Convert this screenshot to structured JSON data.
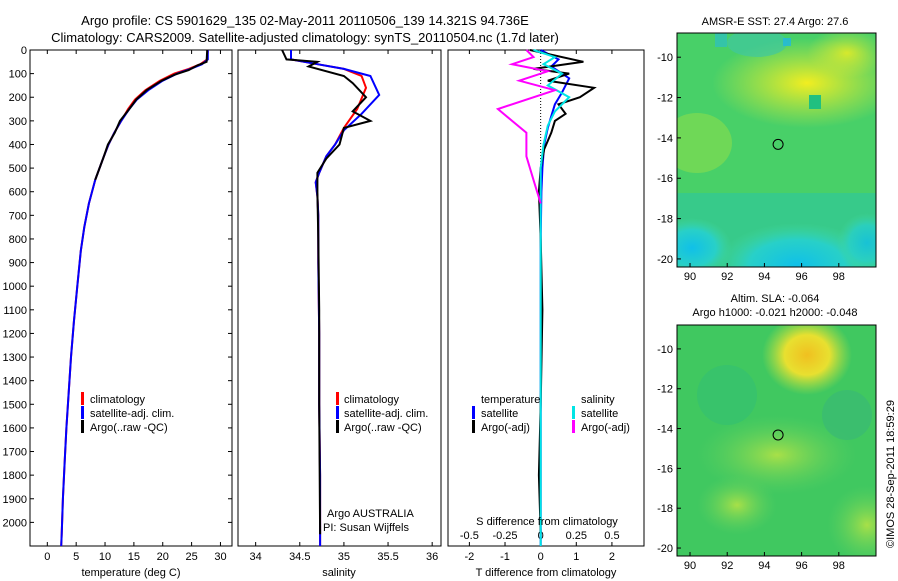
{
  "title": {
    "line1": "Argo profile: CS 5901629_135 02-May-2011 20110506_139 14.321S 94.736E",
    "line2": "Climatology: CARS2009. Satellite-adjusted climatology: synTS_20110504.nc (1.7d later)"
  },
  "map_titles": {
    "sst": "AMSR-E SST: 27.4 Argo: 27.6",
    "sla_line1": "Altim. SLA: -0.064",
    "sla_line2": "Argo h1000: -0.021 h2000: -0.048"
  },
  "footer": "©IMOS 28-Sep-2011 18:59:29",
  "float_info": {
    "line1": "Argo AUSTRALIA",
    "line2": "PI: Susan Wijffels"
  },
  "colors": {
    "climatology": "#ff0000",
    "satellite": "#0000ff",
    "argo": "#000000",
    "salinity_satellite": "#00e5e5",
    "salinity_argo": "#ff00ff"
  },
  "chart_data": [
    {
      "type": "line",
      "id": "temperature",
      "xlabel": "temperature (deg C)",
      "ylabel": "",
      "xlim": [
        -3,
        32
      ],
      "ylim": [
        0,
        2100
      ],
      "xticks": [
        0,
        5,
        10,
        15,
        20,
        25,
        30
      ],
      "yticks": [
        0,
        100,
        200,
        300,
        400,
        500,
        600,
        700,
        800,
        900,
        1000,
        1100,
        1200,
        1300,
        1400,
        1500,
        1600,
        1700,
        1800,
        1900,
        2000
      ],
      "legend": [
        "climatology",
        "satellite-adj. clim.",
        "Argo(..raw -QC)"
      ],
      "series": [
        {
          "name": "climatology",
          "color": "#ff0000",
          "x": [
            27.8,
            27.7,
            26.5,
            24.5,
            22,
            19.5,
            17,
            15.2,
            14,
            12.8,
            11.6,
            10.6,
            9.8,
            8.3,
            7.2,
            6.4,
            5.8,
            5.2,
            4.6,
            4.1,
            3.7,
            3.3,
            3.0,
            2.7,
            2.5,
            2.4
          ],
          "y": [
            0,
            40,
            60,
            80,
            100,
            130,
            170,
            210,
            250,
            300,
            350,
            400,
            450,
            550,
            650,
            750,
            850,
            1000,
            1150,
            1300,
            1450,
            1600,
            1750,
            1900,
            2050,
            2100
          ]
        },
        {
          "name": "satellite-adj. clim.",
          "color": "#0000ff",
          "x": [
            27.8,
            27.8,
            26.8,
            24.8,
            22.5,
            20,
            17.5,
            15.5,
            14.2,
            12.8,
            11.6,
            10.6,
            9.8,
            8.3,
            7.2,
            6.4,
            5.8,
            5.2,
            4.6,
            4.1,
            3.7,
            3.3,
            3.0,
            2.7,
            2.5,
            2.4
          ],
          "y": [
            0,
            40,
            60,
            80,
            100,
            130,
            170,
            210,
            250,
            300,
            350,
            400,
            450,
            550,
            650,
            750,
            850,
            1000,
            1150,
            1300,
            1450,
            1600,
            1750,
            1900,
            2050,
            2100
          ]
        },
        {
          "name": "Argo(..raw -QC)",
          "color": "#000000",
          "x": [
            27.7,
            27.6,
            26,
            24.5,
            22,
            19.8,
            17.2,
            15.4,
            14.2,
            12.6,
            11.7,
            10.5,
            9.8,
            8.3
          ],
          "y": [
            0,
            50,
            65,
            85,
            105,
            130,
            170,
            210,
            250,
            300,
            350,
            400,
            450,
            550
          ]
        }
      ]
    },
    {
      "type": "line",
      "id": "salinity",
      "xlabel": "salinity",
      "ylabel": "",
      "xlim": [
        33.8,
        36.1
      ],
      "ylim": [
        0,
        2100
      ],
      "xticks": [
        34,
        34.5,
        35,
        35.5,
        36
      ],
      "xtick_labels": [
        "34",
        "34.5",
        "35",
        "35.5",
        "36"
      ],
      "legend": [
        "climatology",
        "satellite-adj. clim.",
        "Argo(..raw -QC)"
      ],
      "series": [
        {
          "name": "climatology",
          "color": "#ff0000",
          "x": [
            34.4,
            34.4,
            34.7,
            35.0,
            35.2,
            35.25,
            35.15,
            35.0,
            34.9,
            34.8,
            34.72,
            34.68,
            34.7,
            34.71,
            34.71,
            34.72,
            34.72,
            34.73,
            34.73
          ],
          "y": [
            0,
            40,
            60,
            80,
            110,
            160,
            250,
            330,
            400,
            450,
            520,
            560,
            620,
            700,
            900,
            1200,
            1500,
            1800,
            2100
          ]
        },
        {
          "name": "satellite-adj. clim.",
          "color": "#0000ff",
          "x": [
            34.4,
            34.4,
            34.7,
            35.0,
            35.3,
            35.4,
            35.2,
            35.0,
            34.9,
            34.8,
            34.72,
            34.68,
            34.7,
            34.71,
            34.71,
            34.72,
            34.72,
            34.73,
            34.73
          ],
          "y": [
            0,
            40,
            60,
            80,
            110,
            190,
            270,
            340,
            400,
            450,
            520,
            560,
            620,
            700,
            900,
            1200,
            1500,
            1800,
            2100
          ]
        },
        {
          "name": "Argo(..raw -QC)",
          "color": "#000000",
          "x": [
            34.3,
            34.35,
            34.7,
            34.6,
            35.0,
            35.1,
            35.25,
            35.1,
            35.3,
            35.0,
            34.95,
            34.8,
            34.7,
            34.7,
            34.71,
            34.72,
            34.72,
            34.73
          ],
          "y": [
            0,
            40,
            50,
            70,
            110,
            140,
            200,
            260,
            300,
            330,
            400,
            460,
            520,
            600,
            800,
            1100,
            1500,
            2050
          ]
        }
      ]
    },
    {
      "type": "line",
      "id": "difference",
      "xlabel": "T difference from climatology",
      "xlabel_top": "S difference from climatology",
      "ylabel": "",
      "xlim": [
        -2.6,
        2.9
      ],
      "ylim": [
        0,
        2100
      ],
      "xticks": [
        -2,
        -1,
        0,
        1,
        2
      ],
      "sticks": [
        -0.5,
        -0.25,
        0,
        0.25,
        0.5
      ],
      "s_scale": 4,
      "legend_temperature": {
        "title": "temperature",
        "entries": [
          "satellite",
          "Argo(-adj)"
        ]
      },
      "legend_salinity": {
        "title": "salinity",
        "entries": [
          "satellite",
          "Argo(-adj)"
        ]
      },
      "series": [
        {
          "name": "temperature satellite",
          "color": "#0000ff",
          "x": [
            0,
            0.5,
            0.3,
            0.8,
            0.6,
            0.4,
            0.3,
            0.2,
            0.1,
            0.05,
            0.02,
            0,
            0,
            0,
            0
          ],
          "y": [
            0,
            40,
            70,
            120,
            180,
            230,
            280,
            330,
            400,
            500,
            600,
            800,
            1200,
            1700,
            2100
          ]
        },
        {
          "name": "temperature Argo(-adj)",
          "color": "#000000",
          "x": [
            -0.3,
            1.2,
            -0.2,
            0.8,
            0.2,
            1.5,
            1.1,
            0.5,
            0.7,
            0.4,
            0.3,
            0.1,
            0,
            -0.05,
            0,
            0.05,
            0,
            -0.05,
            0
          ],
          "y": [
            0,
            50,
            80,
            100,
            130,
            160,
            200,
            230,
            270,
            300,
            350,
            420,
            500,
            600,
            800,
            1100,
            1500,
            1800,
            2050
          ]
        },
        {
          "name": "salinity satellite",
          "color": "#00e5e5",
          "x": [
            -0.05,
            0.1,
            0.02,
            0.15,
            0.05,
            0.2,
            0.1,
            0.05,
            0.02,
            0,
            0,
            0,
            0
          ],
          "y": [
            0,
            30,
            60,
            100,
            150,
            200,
            260,
            320,
            400,
            500,
            700,
            1200,
            2100
          ]
        },
        {
          "name": "salinity Argo(-adj)",
          "color": "#ff00ff",
          "x": [
            -0.1,
            -0.05,
            -0.2,
            0.05,
            -0.15,
            0.1,
            -0.3,
            -0.2,
            -0.1,
            -0.1,
            -0.05,
            0
          ],
          "y": [
            0,
            30,
            60,
            90,
            130,
            170,
            250,
            300,
            350,
            450,
            550,
            650
          ]
        }
      ]
    },
    {
      "type": "heatmap",
      "id": "sst-map",
      "title": "AMSR-E SST: 27.4 Argo: 27.6",
      "xlim": [
        89.3,
        100
      ],
      "ylim": [
        -20.4,
        -8.8
      ],
      "xticks": [
        90,
        92,
        94,
        96,
        98
      ],
      "yticks": [
        -10,
        -12,
        -14,
        -16,
        -18,
        -20
      ],
      "float_position": [
        94.736,
        -14.321
      ]
    },
    {
      "type": "heatmap",
      "id": "sla-map",
      "title": "Altim. SLA: -0.064",
      "xlim": [
        89.3,
        100
      ],
      "ylim": [
        -20.4,
        -8.8
      ],
      "xticks": [
        90,
        92,
        94,
        96,
        98
      ],
      "yticks": [
        -10,
        -12,
        -14,
        -16,
        -18,
        -20
      ],
      "float_position": [
        94.736,
        -14.321
      ]
    }
  ]
}
